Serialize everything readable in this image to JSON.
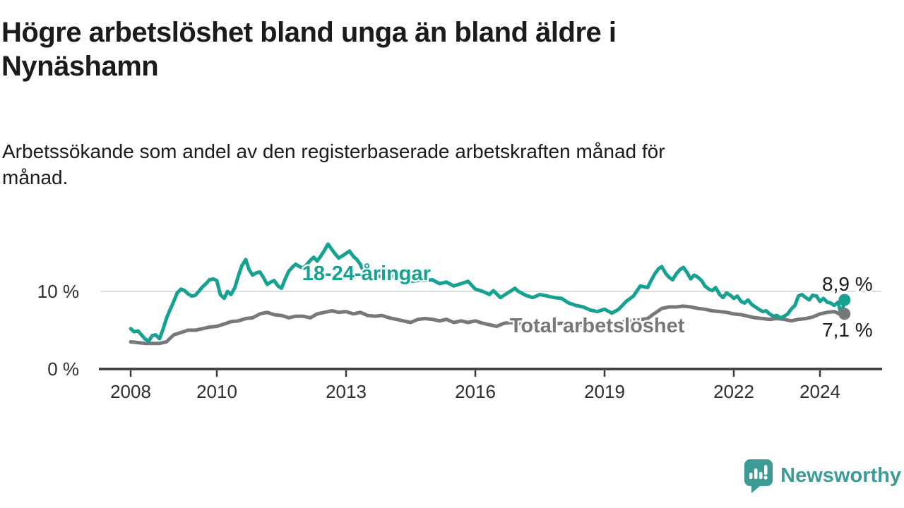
{
  "header": {
    "title_lines": [
      "Högre arbetslöshet bland unga än bland äldre i",
      "Nynäshamn"
    ],
    "subtitle_lines": [
      "Arbetssökande som andel av den registerbaserade arbetskraften månad för",
      "månad."
    ]
  },
  "footer": {
    "brand": "Newsworthy",
    "logo_icon": "bar-chart-speech-bubble",
    "brand_color": "#3d9b95"
  },
  "chart_data": {
    "type": "line",
    "unit": "%",
    "grid": "single horizontal gridline at 10 %",
    "legend_position": "inline labels on lines",
    "x_axis": {
      "ticks": [
        {
          "year": 2008,
          "label": "2008"
        },
        {
          "year": 2010,
          "label": "2010"
        },
        {
          "year": 2013,
          "label": "2013"
        },
        {
          "year": 2016,
          "label": "2016"
        },
        {
          "year": 2019,
          "label": "2019"
        },
        {
          "year": 2022,
          "label": "2022"
        },
        {
          "year": 2024,
          "label": "2024"
        }
      ],
      "range_years": [
        2007.3,
        2025.4
      ]
    },
    "y_axis": {
      "ticks": [
        {
          "value": 0,
          "label": "0 %"
        },
        {
          "value": 10,
          "label": "10 %"
        }
      ],
      "range": [
        0,
        17.5
      ],
      "gridline_values": [
        10
      ]
    },
    "colors": {
      "grid": "#dcdcdc",
      "axis": "#3b3b3b",
      "text": "#2e2e2e",
      "annotation": "#1b1b1b"
    },
    "series": [
      {
        "name": "18-24-åringar",
        "color": "#16a191",
        "end_value_label": "8,9 %",
        "label_anchor": {
          "year": 2011.98,
          "pct": 11.45
        },
        "end_label_anchor": {
          "year": 2024.05,
          "pct": 10.1
        },
        "points": [
          [
            2008.0,
            5.2
          ],
          [
            2008.08,
            4.8
          ],
          [
            2008.17,
            4.9
          ],
          [
            2008.25,
            4.4
          ],
          [
            2008.33,
            3.9
          ],
          [
            2008.42,
            3.6
          ],
          [
            2008.5,
            4.3
          ],
          [
            2008.58,
            4.4
          ],
          [
            2008.67,
            3.9
          ],
          [
            2008.75,
            5.1
          ],
          [
            2008.83,
            6.5
          ],
          [
            2008.92,
            7.7
          ],
          [
            2009.0,
            8.7
          ],
          [
            2009.08,
            9.8
          ],
          [
            2009.17,
            10.3
          ],
          [
            2009.25,
            10.1
          ],
          [
            2009.33,
            9.7
          ],
          [
            2009.42,
            9.4
          ],
          [
            2009.5,
            9.5
          ],
          [
            2009.58,
            10.0
          ],
          [
            2009.67,
            10.6
          ],
          [
            2009.75,
            11.0
          ],
          [
            2009.83,
            11.5
          ],
          [
            2009.92,
            11.6
          ],
          [
            2010.0,
            11.4
          ],
          [
            2010.08,
            9.6
          ],
          [
            2010.17,
            9.1
          ],
          [
            2010.25,
            10.0
          ],
          [
            2010.33,
            9.6
          ],
          [
            2010.42,
            10.5
          ],
          [
            2010.5,
            12.0
          ],
          [
            2010.58,
            13.3
          ],
          [
            2010.67,
            14.1
          ],
          [
            2010.75,
            12.8
          ],
          [
            2010.83,
            12.1
          ],
          [
            2010.92,
            12.4
          ],
          [
            2011.0,
            12.5
          ],
          [
            2011.08,
            11.8
          ],
          [
            2011.17,
            10.9
          ],
          [
            2011.25,
            11.2
          ],
          [
            2011.33,
            11.4
          ],
          [
            2011.42,
            10.7
          ],
          [
            2011.5,
            10.4
          ],
          [
            2011.58,
            11.5
          ],
          [
            2011.67,
            12.6
          ],
          [
            2011.75,
            13.1
          ],
          [
            2011.83,
            13.5
          ],
          [
            2011.92,
            13.2
          ],
          [
            2012.0,
            13.0
          ],
          [
            2012.08,
            13.4
          ],
          [
            2012.17,
            14.0
          ],
          [
            2012.25,
            14.4
          ],
          [
            2012.33,
            13.9
          ],
          [
            2012.42,
            14.6
          ],
          [
            2012.5,
            15.3
          ],
          [
            2012.58,
            16.1
          ],
          [
            2012.67,
            15.4
          ],
          [
            2012.75,
            14.8
          ],
          [
            2012.83,
            14.3
          ],
          [
            2012.92,
            14.6
          ],
          [
            2013.0,
            14.9
          ],
          [
            2013.08,
            15.2
          ],
          [
            2013.17,
            14.5
          ],
          [
            2013.25,
            14.1
          ],
          [
            2013.33,
            13.5
          ],
          [
            2013.42,
            12.4
          ],
          [
            2013.5,
            12.6
          ],
          [
            2013.58,
            12.2
          ],
          [
            2013.67,
            12.0
          ],
          [
            2013.75,
            11.9
          ],
          [
            2013.83,
            12.0
          ],
          [
            2013.92,
            12.2
          ],
          [
            2014.0,
            12.1
          ],
          [
            2014.17,
            11.8
          ],
          [
            2014.33,
            11.5
          ],
          [
            2014.5,
            11.3
          ],
          [
            2014.67,
            11.4
          ],
          [
            2014.83,
            11.4
          ],
          [
            2015.0,
            11.5
          ],
          [
            2015.17,
            11.0
          ],
          [
            2015.33,
            11.2
          ],
          [
            2015.5,
            10.7
          ],
          [
            2015.67,
            11.0
          ],
          [
            2015.83,
            11.3
          ],
          [
            2016.0,
            10.3
          ],
          [
            2016.17,
            10.0
          ],
          [
            2016.33,
            9.6
          ],
          [
            2016.42,
            10.1
          ],
          [
            2016.58,
            9.2
          ],
          [
            2016.75,
            9.8
          ],
          [
            2016.92,
            10.4
          ],
          [
            2017.0,
            10.0
          ],
          [
            2017.17,
            9.5
          ],
          [
            2017.33,
            9.2
          ],
          [
            2017.5,
            9.6
          ],
          [
            2017.67,
            9.4
          ],
          [
            2017.83,
            9.2
          ],
          [
            2018.0,
            9.1
          ],
          [
            2018.17,
            8.5
          ],
          [
            2018.33,
            8.2
          ],
          [
            2018.5,
            8.0
          ],
          [
            2018.67,
            7.6
          ],
          [
            2018.83,
            7.4
          ],
          [
            2019.0,
            7.7
          ],
          [
            2019.17,
            7.2
          ],
          [
            2019.33,
            7.7
          ],
          [
            2019.5,
            8.7
          ],
          [
            2019.67,
            9.4
          ],
          [
            2019.83,
            10.7
          ],
          [
            2020.0,
            10.5
          ],
          [
            2020.08,
            11.4
          ],
          [
            2020.17,
            12.3
          ],
          [
            2020.25,
            12.9
          ],
          [
            2020.33,
            13.2
          ],
          [
            2020.42,
            12.3
          ],
          [
            2020.5,
            11.8
          ],
          [
            2020.58,
            11.5
          ],
          [
            2020.67,
            12.3
          ],
          [
            2020.75,
            12.8
          ],
          [
            2020.83,
            13.1
          ],
          [
            2020.92,
            12.4
          ],
          [
            2021.0,
            11.6
          ],
          [
            2021.08,
            12.1
          ],
          [
            2021.17,
            11.8
          ],
          [
            2021.25,
            11.4
          ],
          [
            2021.33,
            10.7
          ],
          [
            2021.42,
            10.3
          ],
          [
            2021.5,
            10.1
          ],
          [
            2021.58,
            10.5
          ],
          [
            2021.67,
            9.6
          ],
          [
            2021.75,
            9.2
          ],
          [
            2021.83,
            9.8
          ],
          [
            2021.92,
            9.5
          ],
          [
            2022.0,
            9.1
          ],
          [
            2022.08,
            9.4
          ],
          [
            2022.17,
            8.7
          ],
          [
            2022.25,
            8.5
          ],
          [
            2022.33,
            8.9
          ],
          [
            2022.42,
            8.3
          ],
          [
            2022.5,
            8.0
          ],
          [
            2022.58,
            7.7
          ],
          [
            2022.67,
            7.4
          ],
          [
            2022.75,
            7.5
          ],
          [
            2022.83,
            7.1
          ],
          [
            2022.92,
            6.8
          ],
          [
            2023.0,
            6.9
          ],
          [
            2023.08,
            6.6
          ],
          [
            2023.17,
            6.8
          ],
          [
            2023.25,
            7.1
          ],
          [
            2023.33,
            7.7
          ],
          [
            2023.42,
            8.2
          ],
          [
            2023.5,
            9.4
          ],
          [
            2023.58,
            9.6
          ],
          [
            2023.67,
            9.2
          ],
          [
            2023.75,
            8.9
          ],
          [
            2023.83,
            9.5
          ],
          [
            2023.92,
            9.4
          ],
          [
            2024.0,
            8.7
          ],
          [
            2024.08,
            9.1
          ],
          [
            2024.17,
            8.6
          ],
          [
            2024.25,
            8.5
          ],
          [
            2024.33,
            8.2
          ],
          [
            2024.42,
            8.6
          ],
          [
            2024.5,
            6.9
          ],
          [
            2024.57,
            8.9
          ]
        ]
      },
      {
        "name": "Total arbetslöshet",
        "color": "#77787b",
        "end_value_label": "7,1 %",
        "label_anchor": {
          "year": 2016.8,
          "pct": 4.73
        },
        "end_label_anchor": {
          "year": 2024.05,
          "pct": 4.18
        },
        "points": [
          [
            2008.0,
            3.5
          ],
          [
            2008.17,
            3.4
          ],
          [
            2008.33,
            3.3
          ],
          [
            2008.5,
            3.3
          ],
          [
            2008.67,
            3.3
          ],
          [
            2008.83,
            3.5
          ],
          [
            2009.0,
            4.4
          ],
          [
            2009.17,
            4.7
          ],
          [
            2009.33,
            5.0
          ],
          [
            2009.5,
            5.0
          ],
          [
            2009.67,
            5.2
          ],
          [
            2009.83,
            5.4
          ],
          [
            2010.0,
            5.5
          ],
          [
            2010.17,
            5.8
          ],
          [
            2010.33,
            6.1
          ],
          [
            2010.5,
            6.2
          ],
          [
            2010.67,
            6.5
          ],
          [
            2010.83,
            6.6
          ],
          [
            2011.0,
            7.1
          ],
          [
            2011.17,
            7.3
          ],
          [
            2011.33,
            7.0
          ],
          [
            2011.5,
            6.9
          ],
          [
            2011.67,
            6.6
          ],
          [
            2011.83,
            6.8
          ],
          [
            2012.0,
            6.8
          ],
          [
            2012.17,
            6.6
          ],
          [
            2012.33,
            7.1
          ],
          [
            2012.5,
            7.3
          ],
          [
            2012.67,
            7.5
          ],
          [
            2012.83,
            7.3
          ],
          [
            2013.0,
            7.4
          ],
          [
            2013.17,
            7.1
          ],
          [
            2013.33,
            7.3
          ],
          [
            2013.5,
            6.9
          ],
          [
            2013.67,
            6.8
          ],
          [
            2013.83,
            6.9
          ],
          [
            2014.0,
            6.6
          ],
          [
            2014.17,
            6.4
          ],
          [
            2014.33,
            6.2
          ],
          [
            2014.5,
            6.0
          ],
          [
            2014.67,
            6.4
          ],
          [
            2014.83,
            6.5
          ],
          [
            2015.0,
            6.4
          ],
          [
            2015.17,
            6.2
          ],
          [
            2015.33,
            6.4
          ],
          [
            2015.5,
            6.0
          ],
          [
            2015.67,
            6.2
          ],
          [
            2015.83,
            6.0
          ],
          [
            2016.0,
            6.2
          ],
          [
            2016.17,
            5.9
          ],
          [
            2016.33,
            5.7
          ],
          [
            2016.5,
            5.5
          ],
          [
            2016.67,
            5.9
          ],
          [
            2016.83,
            6.0
          ],
          [
            2017.0,
            5.9
          ],
          [
            2017.25,
            5.8
          ],
          [
            2017.5,
            5.9
          ],
          [
            2017.75,
            5.8
          ],
          [
            2018.0,
            5.9
          ],
          [
            2018.25,
            5.8
          ],
          [
            2018.5,
            5.7
          ],
          [
            2018.75,
            5.8
          ],
          [
            2019.0,
            5.9
          ],
          [
            2019.25,
            6.0
          ],
          [
            2019.5,
            6.1
          ],
          [
            2019.75,
            6.3
          ],
          [
            2020.0,
            6.5
          ],
          [
            2020.17,
            7.2
          ],
          [
            2020.33,
            7.8
          ],
          [
            2020.5,
            8.0
          ],
          [
            2020.67,
            8.0
          ],
          [
            2020.83,
            8.1
          ],
          [
            2021.0,
            8.0
          ],
          [
            2021.17,
            7.8
          ],
          [
            2021.33,
            7.7
          ],
          [
            2021.5,
            7.5
          ],
          [
            2021.67,
            7.4
          ],
          [
            2021.83,
            7.3
          ],
          [
            2022.0,
            7.1
          ],
          [
            2022.17,
            7.0
          ],
          [
            2022.33,
            6.8
          ],
          [
            2022.5,
            6.6
          ],
          [
            2022.67,
            6.5
          ],
          [
            2022.83,
            6.4
          ],
          [
            2023.0,
            6.5
          ],
          [
            2023.17,
            6.4
          ],
          [
            2023.33,
            6.2
          ],
          [
            2023.5,
            6.4
          ],
          [
            2023.67,
            6.5
          ],
          [
            2023.83,
            6.7
          ],
          [
            2024.0,
            7.1
          ],
          [
            2024.17,
            7.3
          ],
          [
            2024.33,
            7.4
          ],
          [
            2024.42,
            7.2
          ],
          [
            2024.5,
            6.9
          ],
          [
            2024.57,
            7.1
          ]
        ]
      }
    ]
  }
}
